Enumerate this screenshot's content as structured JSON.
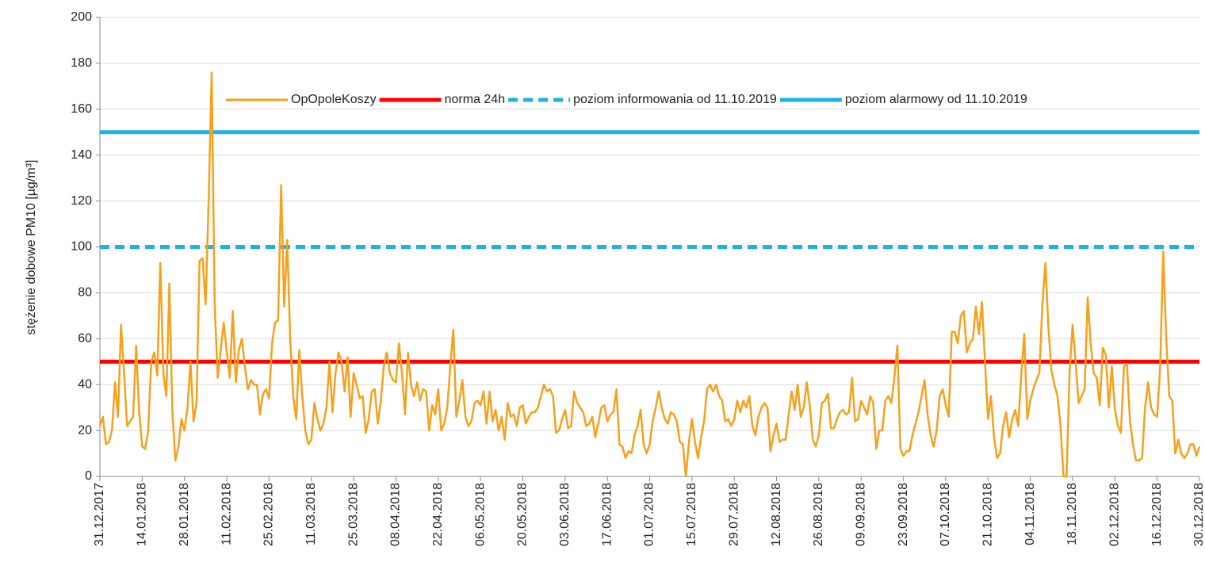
{
  "chart_data": {
    "type": "line",
    "y_label": "stężenie dobowe PM10 [µg/m³]",
    "ylim": [
      0,
      200
    ],
    "yticks": [
      0,
      20,
      40,
      60,
      80,
      100,
      120,
      140,
      160,
      180,
      200
    ],
    "grid": true,
    "legend": "top",
    "categories": [
      "31.12.2017",
      null,
      null,
      null,
      null,
      null,
      null,
      null,
      null,
      null,
      null,
      null,
      null,
      null,
      "14.01.2018",
      null,
      null,
      null,
      null,
      null,
      null,
      null,
      null,
      null,
      null,
      null,
      null,
      null,
      "28.01.2018",
      null,
      null,
      null,
      null,
      null,
      null,
      null,
      null,
      null,
      null,
      null,
      null,
      null,
      "11.02.2018",
      null,
      null,
      null,
      null,
      null,
      null,
      null,
      null,
      null,
      null,
      null,
      null,
      null,
      "25.02.2018",
      null,
      null,
      null,
      null,
      null,
      null,
      null,
      null,
      null,
      null,
      null,
      null,
      null,
      "11.03.2018",
      null,
      null,
      null,
      null,
      null,
      null,
      null,
      null,
      null,
      null,
      null,
      null,
      null,
      "25.03.2018",
      null,
      null,
      null,
      null,
      null,
      null,
      null,
      null,
      null,
      null,
      null,
      null,
      null,
      "08.04.2018",
      null,
      null,
      null,
      null,
      null,
      null,
      null,
      null,
      null,
      null,
      null,
      null,
      null,
      "22.04.2018",
      null,
      null,
      null,
      null,
      null,
      null,
      null,
      null,
      null,
      null,
      null,
      null,
      null,
      "06.05.2018",
      null,
      null,
      null,
      null,
      null,
      null,
      null,
      null,
      null,
      null,
      null,
      null,
      null,
      "20.05.2018",
      null,
      null,
      null,
      null,
      null,
      null,
      null,
      null,
      null,
      null,
      null,
      null,
      null,
      "03.06.2018",
      null,
      null,
      null,
      null,
      null,
      null,
      null,
      null,
      null,
      null,
      null,
      null,
      null,
      "17.06.2018",
      null,
      null,
      null,
      null,
      null,
      null,
      null,
      null,
      null,
      null,
      null,
      null,
      null,
      "01.07.2018",
      null,
      null,
      null,
      null,
      null,
      null,
      null,
      null,
      null,
      null,
      null,
      null,
      null,
      "15.07.2018",
      null,
      null,
      null,
      null,
      null,
      null,
      null,
      null,
      null,
      null,
      null,
      null,
      null,
      "29.07.2018",
      null,
      null,
      null,
      null,
      null,
      null,
      null,
      null,
      null,
      null,
      null,
      null,
      null,
      "12.08.2018",
      null,
      null,
      null,
      null,
      null,
      null,
      null,
      null,
      null,
      null,
      null,
      null,
      null,
      "26.08.2018",
      null,
      null,
      null,
      null,
      null,
      null,
      null,
      null,
      null,
      null,
      null,
      null,
      null,
      "09.09.2018",
      null,
      null,
      null,
      null,
      null,
      null,
      null,
      null,
      null,
      null,
      null,
      null,
      null,
      "23.09.2018",
      null,
      null,
      null,
      null,
      null,
      null,
      null,
      null,
      null,
      null,
      null,
      null,
      null,
      "07.10.2018",
      null,
      null,
      null,
      null,
      null,
      null,
      null,
      null,
      null,
      null,
      null,
      null,
      null,
      "21.10.2018",
      null,
      null,
      null,
      null,
      null,
      null,
      null,
      null,
      null,
      null,
      null,
      null,
      null,
      "04.11.2018",
      null,
      null,
      null,
      null,
      null,
      null,
      null,
      null,
      null,
      null,
      null,
      null,
      null,
      "18.11.2018",
      null,
      null,
      null,
      null,
      null,
      null,
      null,
      null,
      null,
      null,
      null,
      null,
      null,
      "02.12.2018",
      null,
      null,
      null,
      null,
      null,
      null,
      null,
      null,
      null,
      null,
      null,
      null,
      null,
      "16.12.2018",
      null,
      null,
      null,
      null,
      null,
      null,
      null,
      null,
      null,
      null,
      null,
      null,
      null,
      "30.12.2018"
    ],
    "series": [
      {
        "name": "OpOpoleKoszy",
        "color": "#f7a01c",
        "values": [
          22,
          26,
          14,
          15,
          20,
          41,
          26,
          66,
          45,
          22,
          24,
          26,
          57,
          28,
          13,
          12,
          20,
          50,
          54,
          44,
          93,
          45,
          35,
          84,
          28,
          7,
          13,
          25,
          20,
          30,
          50,
          24,
          32,
          94,
          95,
          75,
          120,
          176,
          75,
          43,
          55,
          67,
          54,
          43,
          72,
          41,
          55,
          60,
          48,
          38,
          42,
          40,
          40,
          27,
          36,
          38,
          34,
          58,
          67,
          68,
          127,
          74,
          103,
          60,
          35,
          25,
          55,
          35,
          20,
          14,
          16,
          32,
          25,
          20,
          23,
          30,
          50,
          28,
          45,
          54,
          50,
          37,
          52,
          26,
          45,
          40,
          34,
          35,
          19,
          25,
          37,
          38,
          23,
          33,
          48,
          54,
          45,
          42,
          41,
          58,
          45,
          27,
          54,
          40,
          35,
          41,
          33,
          38,
          37,
          20,
          31,
          27,
          38,
          20,
          23,
          30,
          48,
          64,
          26,
          33,
          42,
          26,
          22,
          24,
          32,
          33,
          31,
          37,
          23,
          37,
          24,
          29,
          20,
          26,
          16,
          32,
          26,
          27,
          22,
          30,
          31,
          23,
          26,
          28,
          28,
          30,
          35,
          40,
          37,
          38,
          35,
          19,
          20,
          25,
          29,
          21,
          22,
          37,
          32,
          30,
          28,
          22,
          23,
          26,
          17,
          23,
          30,
          31,
          24,
          27,
          28,
          38,
          14,
          13,
          8,
          11,
          10,
          18,
          22,
          29,
          14,
          10,
          14,
          24,
          30,
          37,
          30,
          25,
          23,
          28,
          27,
          24,
          15,
          14,
          0,
          15,
          25,
          15,
          8,
          17,
          24,
          38,
          40,
          37,
          40,
          35,
          33,
          24,
          25,
          22,
          25,
          33,
          28,
          33,
          30,
          35,
          22,
          18,
          26,
          30,
          32,
          30,
          11,
          18,
          23,
          15,
          16,
          16,
          27,
          37,
          29,
          40,
          26,
          30,
          41,
          31,
          16,
          13,
          18,
          32,
          33,
          36,
          21,
          21,
          25,
          28,
          29,
          27,
          28,
          43,
          24,
          25,
          33,
          30,
          27,
          35,
          32,
          12,
          20,
          20,
          33,
          35,
          32,
          43,
          57,
          12,
          9,
          11,
          11,
          18,
          23,
          28,
          35,
          42,
          27,
          18,
          13,
          20,
          35,
          38,
          31,
          26,
          63,
          63,
          58,
          70,
          72,
          54,
          58,
          60,
          74,
          62,
          76,
          50,
          25,
          35,
          17,
          8,
          10,
          22,
          28,
          17,
          25,
          29,
          22,
          44,
          62,
          25,
          33,
          38,
          42,
          45,
          75,
          93,
          65,
          46,
          40,
          35,
          22,
          0,
          0,
          45,
          66,
          50,
          32,
          35,
          38,
          78,
          58,
          45,
          43,
          31,
          56,
          53,
          30,
          48,
          29,
          22,
          19,
          48,
          49,
          24,
          14,
          7,
          7,
          8,
          30,
          41,
          30,
          27,
          26,
          48,
          98,
          60,
          35,
          33,
          10,
          16,
          10,
          8,
          10,
          14,
          14,
          9,
          13
        ]
      }
    ],
    "reference_lines": [
      {
        "name": "norma 24h",
        "color": "#ff0000",
        "value": 50,
        "style": "solid"
      },
      {
        "name": "poziom informowania od 11.10.2019",
        "color": "#1eb1e6",
        "value": 100,
        "style": "dashed"
      },
      {
        "name": "poziom alarmowy od 11.10.2019",
        "color": "#1eb1e6",
        "value": 150,
        "style": "solid"
      }
    ]
  }
}
